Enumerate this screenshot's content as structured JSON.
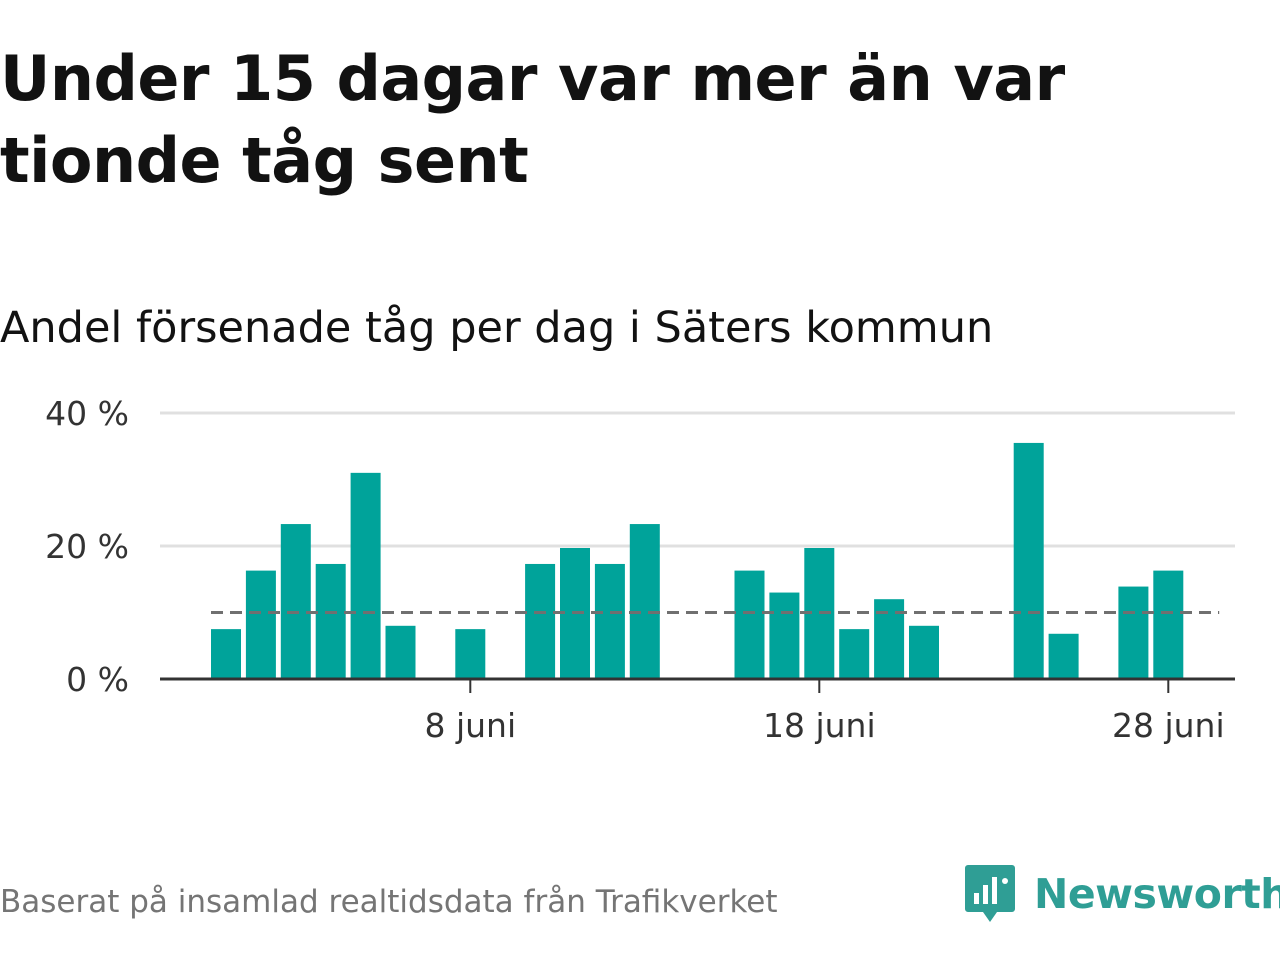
{
  "title": "Under 15 dagar var mer än var tionde tåg sent",
  "subtitle": "Andel försenade tåg per dag i Säters kommun",
  "footer": "Baserat på insamlad realtidsdata från Trafikverket",
  "brand": {
    "name": "Newsworthy",
    "icon": "newsworthy-logo-icon",
    "color": "#2f9e95"
  },
  "colors": {
    "bar": "#00a39a",
    "reference": "#707070",
    "grid": "#e0e0e0",
    "axis": "#333333"
  },
  "chart_data": {
    "type": "bar",
    "x_unit": "day of June",
    "days": [
      1,
      2,
      3,
      4,
      5,
      6,
      7,
      8,
      9,
      10,
      11,
      12,
      13,
      14,
      15,
      16,
      17,
      18,
      19,
      20,
      21,
      22,
      23,
      24,
      25,
      26,
      27,
      28,
      29,
      30
    ],
    "values": [
      7.5,
      16.3,
      23.3,
      17.3,
      31,
      8,
      null,
      7.5,
      null,
      17.3,
      19.7,
      17.3,
      23.3,
      null,
      null,
      16.3,
      13,
      19.7,
      7.5,
      12,
      8,
      null,
      null,
      35.5,
      6.8,
      null,
      13.9,
      16.3,
      null,
      null
    ],
    "reference_line": 10,
    "reference_style": "dashed",
    "ylim": [
      0,
      40
    ],
    "y_ticks": [
      {
        "value": 0,
        "label": "0 %"
      },
      {
        "value": 20,
        "label": "20 %"
      },
      {
        "value": 40,
        "label": "40 %"
      }
    ],
    "x_ticks": [
      {
        "day": 8,
        "label": "8 juni"
      },
      {
        "day": 18,
        "label": "18 juni"
      },
      {
        "day": 28,
        "label": "28 juni"
      }
    ],
    "grid": true
  }
}
